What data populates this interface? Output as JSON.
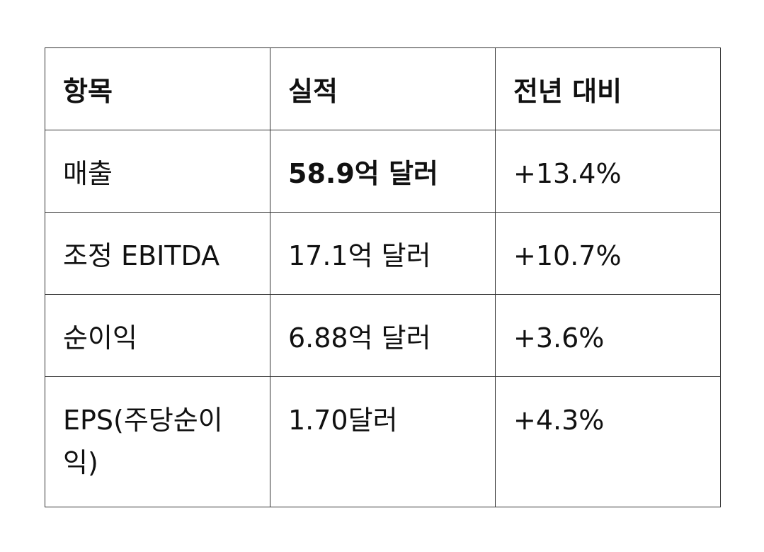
{
  "table": {
    "header": [
      "항목",
      "실적",
      "전년 대비"
    ],
    "rows": [
      [
        "매출",
        "58.9억 달러",
        "+13.4%"
      ],
      [
        "조정 EBITDA",
        "17.1억 달러",
        "+10.7%"
      ],
      [
        "순이익",
        "6.88억 달러",
        "+3.6%"
      ],
      [
        "EPS(주당순이익)",
        "1.70달러",
        "+4.3%"
      ]
    ]
  }
}
